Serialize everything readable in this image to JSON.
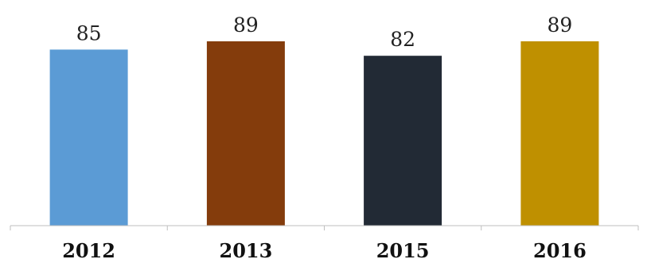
{
  "chart_data": {
    "type": "bar",
    "categories": [
      "2012",
      "2013",
      "2015",
      "2016"
    ],
    "values": [
      85,
      89,
      82,
      89
    ],
    "colors": [
      "#5b9bd5",
      "#843c0c",
      "#222a35",
      "#bf9000"
    ],
    "title": "",
    "xlabel": "",
    "ylabel": "",
    "ylim": [
      0,
      89
    ],
    "grid": false,
    "legend": "none",
    "data_labels": true
  }
}
